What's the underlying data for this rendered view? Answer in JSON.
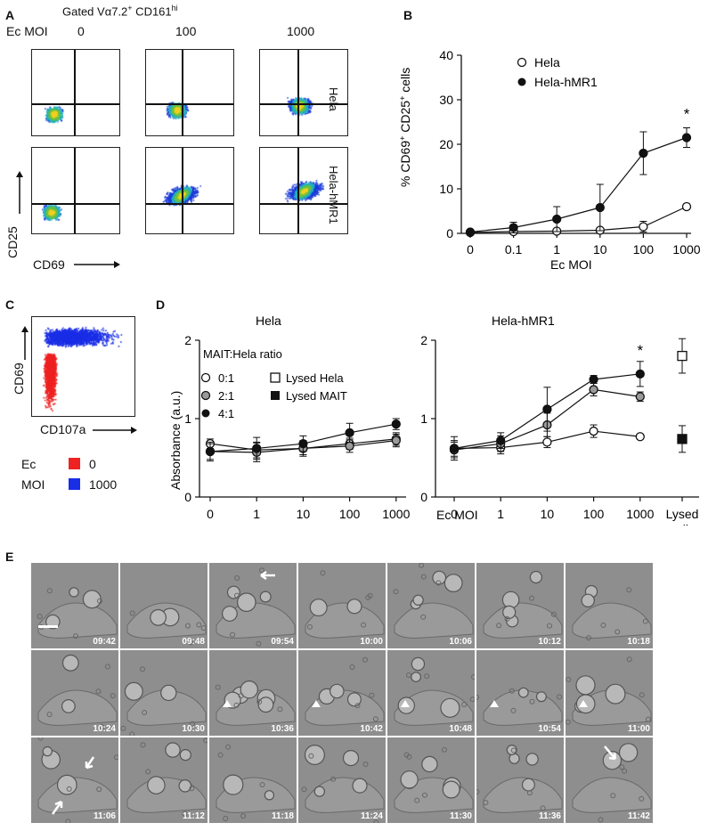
{
  "panelA": {
    "label": "A",
    "title": "Gated Vα7.2",
    "title_sup1": "+",
    "title_cd": " CD161",
    "title_sup2": "hi",
    "ec_moi_label": "Ec MOI",
    "columns": [
      "0",
      "100",
      "1000"
    ],
    "rows": [
      "Hela",
      "Hela-hMR1"
    ],
    "y_axis": "CD25",
    "x_axis": "CD69"
  },
  "panelB": {
    "label": "B",
    "ylabel_pre": "% CD69",
    "ylabel_sup1": "+",
    "ylabel_mid": " CD25",
    "ylabel_sup2": "+",
    "ylabel_post": " cells",
    "xlabel": "Ec MOI",
    "star": "*",
    "legend": [
      "Hela",
      "Hela-hMR1"
    ]
  },
  "panelC": {
    "label": "C",
    "y_axis": "CD69",
    "x_axis": "CD107a",
    "legend_title_1": "Ec",
    "legend_title_2": "MOI",
    "legend": [
      {
        "label": "0",
        "color": "#ee2222"
      },
      {
        "label": "1000",
        "color": "#1a2ee6"
      }
    ]
  },
  "panelD": {
    "label": "D",
    "title_left": "Hela",
    "title_right": "Hela-hMR1",
    "ylabel": "Absorbance (a.u.)",
    "xlabel": "Ec MOI",
    "ratio_title": "MAIT:Hela ratio",
    "ratio_legend": [
      "0:1",
      "2:1",
      "4:1"
    ],
    "lysed_legend": [
      "Lysed Hela",
      "Lysed MAIT"
    ],
    "lysed_tick_1": "Lysed",
    "lysed_tick_2": "cells",
    "star": "*"
  },
  "panelE": {
    "label": "E",
    "timestamps": [
      "09:42",
      "09:48",
      "09:54",
      "10:00",
      "10:06",
      "10:12",
      "10:18",
      "10:24",
      "10:30",
      "10:36",
      "10:42",
      "10:48",
      "10:54",
      "11:00",
      "11:06",
      "11:12",
      "11:18",
      "11:24",
      "11:30",
      "11:36",
      "11:42"
    ]
  },
  "chart_data": [
    {
      "type": "line",
      "panel": "B",
      "x": [
        "0",
        "0.1",
        "1",
        "10",
        "100",
        "1000"
      ],
      "xlabel": "Ec MOI",
      "ylabel": "% CD69+ CD25+ cells",
      "ylim": [
        0,
        40
      ],
      "yticks": [
        0,
        10,
        20,
        30,
        40
      ],
      "series": [
        {
          "name": "Hela",
          "marker": "open-circle",
          "values": [
            0.2,
            0.4,
            0.5,
            0.7,
            1.5,
            6.0
          ],
          "errors": [
            0.2,
            0.3,
            0.4,
            0.5,
            1.2,
            0.6
          ]
        },
        {
          "name": "Hela-hMR1",
          "marker": "filled-circle",
          "values": [
            0.3,
            1.3,
            3.2,
            5.8,
            18.0,
            21.5
          ],
          "errors": [
            0.2,
            1.2,
            2.8,
            5.2,
            4.8,
            2.2
          ]
        }
      ],
      "annotations": [
        {
          "x": "1000",
          "text": "*"
        }
      ]
    },
    {
      "type": "line",
      "panel": "D-left",
      "title": "Hela",
      "x": [
        "0",
        "1",
        "10",
        "100",
        "1000"
      ],
      "ylabel": "Absorbance (a.u.)",
      "ylim": [
        0,
        2
      ],
      "yticks": [
        0,
        1,
        2
      ],
      "series": [
        {
          "name": "0:1",
          "marker": "open-circle",
          "values": [
            0.68,
            0.6,
            0.62,
            0.68,
            0.74
          ],
          "errors": [
            0.06,
            0.1,
            0.08,
            0.07,
            0.08
          ]
        },
        {
          "name": "2:1",
          "marker": "gray-circle",
          "values": [
            0.58,
            0.57,
            0.62,
            0.65,
            0.72
          ],
          "errors": [
            0.1,
            0.12,
            0.1,
            0.08,
            0.08
          ]
        },
        {
          "name": "4:1",
          "marker": "filled-circle",
          "values": [
            0.58,
            0.62,
            0.68,
            0.82,
            0.93
          ],
          "errors": [
            0.12,
            0.14,
            0.1,
            0.12,
            0.07
          ]
        }
      ]
    },
    {
      "type": "line",
      "panel": "D-right",
      "title": "Hela-hMR1",
      "x": [
        "0",
        "1",
        "10",
        "100",
        "1000"
      ],
      "xlabel": "Ec MOI",
      "ylim": [
        0,
        2
      ],
      "yticks": [
        0,
        1,
        2
      ],
      "series": [
        {
          "name": "0:1",
          "marker": "open-circle",
          "values": [
            0.62,
            0.63,
            0.7,
            0.84,
            0.77
          ],
          "errors": [
            0.1,
            0.08,
            0.07,
            0.08,
            0.03
          ]
        },
        {
          "name": "2:1",
          "marker": "gray-circle",
          "values": [
            0.6,
            0.68,
            0.92,
            1.37,
            1.28
          ],
          "errors": [
            0.1,
            0.1,
            0.15,
            0.08,
            0.06
          ]
        },
        {
          "name": "4:1",
          "marker": "filled-circle",
          "values": [
            0.62,
            0.72,
            1.12,
            1.5,
            1.57
          ],
          "errors": [
            0.15,
            0.1,
            0.28,
            0.05,
            0.16
          ]
        }
      ],
      "lysed_cells": [
        {
          "name": "Lysed Hela",
          "marker": "open-square",
          "value": 1.8,
          "error": 0.22
        },
        {
          "name": "Lysed MAIT",
          "marker": "filled-square",
          "value": 0.74,
          "error": 0.17
        }
      ],
      "annotations": [
        {
          "x": "1000",
          "text": "*"
        }
      ]
    }
  ]
}
